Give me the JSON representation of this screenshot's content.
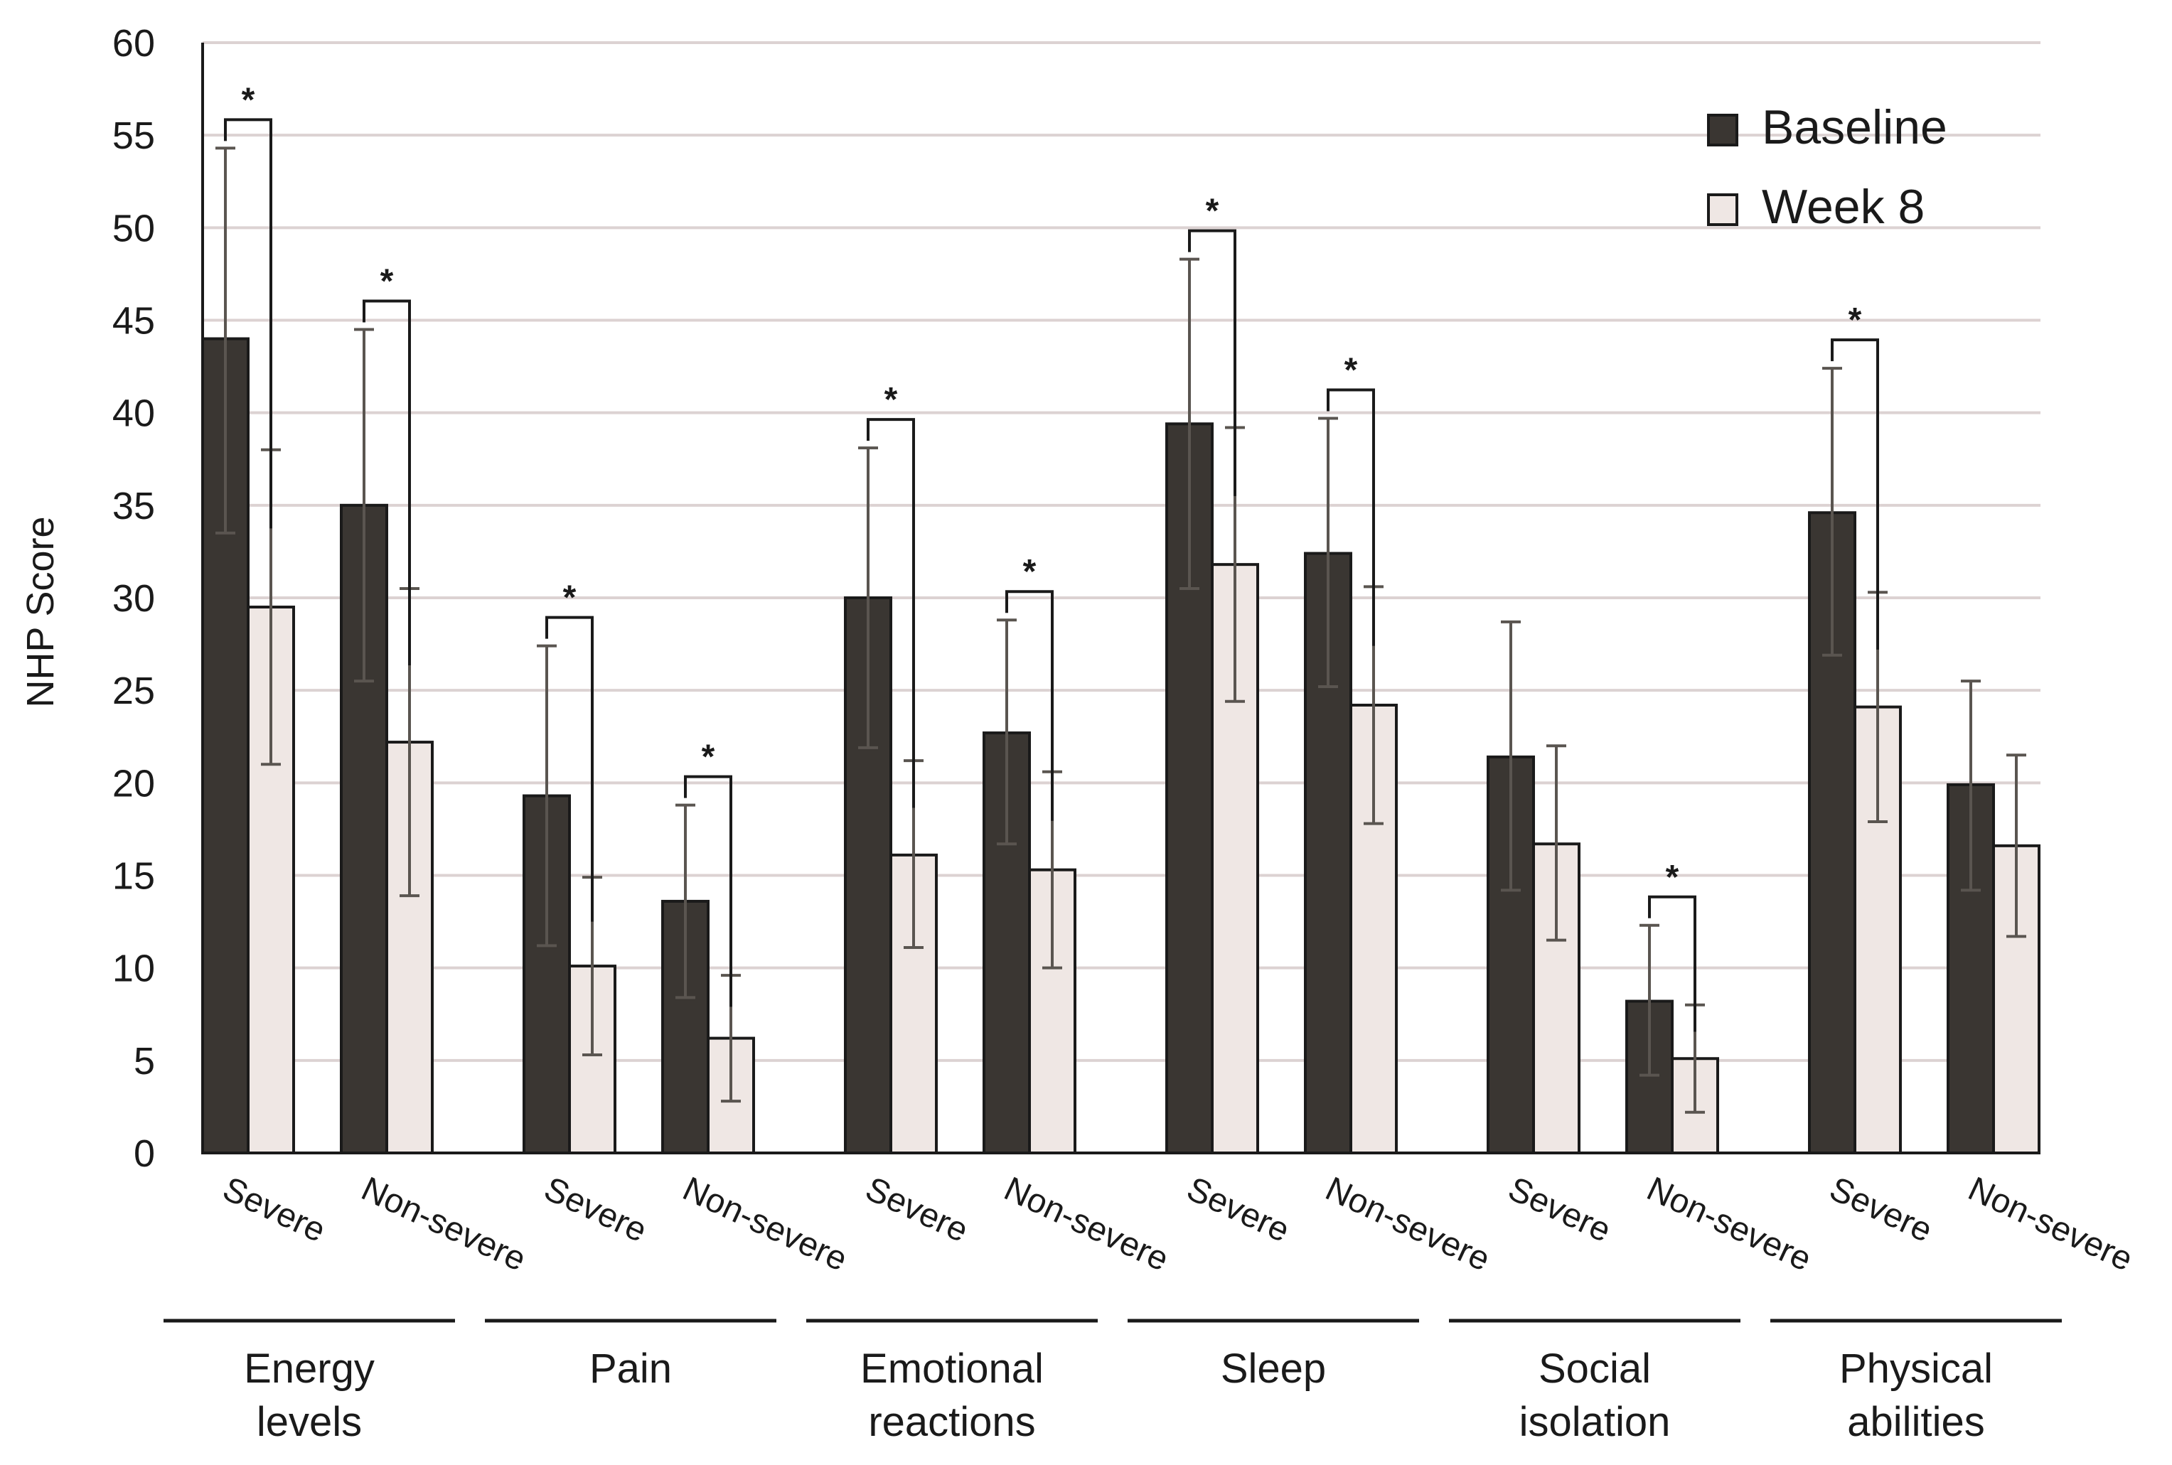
{
  "chart_data": {
    "type": "bar",
    "title": "",
    "xlabel": "",
    "ylabel": "NHP Score",
    "ylim": [
      0,
      60
    ],
    "yticks": [
      0,
      5,
      10,
      15,
      20,
      25,
      30,
      35,
      40,
      45,
      50,
      55,
      60
    ],
    "grid": true,
    "legend_position": "top-right",
    "series": [
      {
        "name": "Baseline",
        "color": "#3a3632"
      },
      {
        "name": "Week 8",
        "color": "#efe7e4"
      }
    ],
    "groups": [
      {
        "name": "Energy\nlevels",
        "subgroups": [
          {
            "label": "Severe",
            "values": [
              44.0,
              29.5
            ],
            "errors": [
              [
                33.5,
                54.3
              ],
              [
                21.0,
                38.0
              ]
            ],
            "significant": true
          },
          {
            "label": "Non-severe",
            "values": [
              35.0,
              22.2
            ],
            "errors": [
              [
                25.5,
                44.5
              ],
              [
                13.9,
                30.5
              ]
            ],
            "significant": true
          }
        ]
      },
      {
        "name": "Pain",
        "subgroups": [
          {
            "label": "Severe",
            "values": [
              19.3,
              10.1
            ],
            "errors": [
              [
                11.2,
                27.4
              ],
              [
                5.3,
                14.9
              ]
            ],
            "significant": true
          },
          {
            "label": "Non-severe",
            "values": [
              13.6,
              6.2
            ],
            "errors": [
              [
                8.4,
                18.8
              ],
              [
                2.8,
                9.6
              ]
            ],
            "significant": true
          }
        ]
      },
      {
        "name": "Emotional\nreactions",
        "subgroups": [
          {
            "label": "Severe",
            "values": [
              30.0,
              16.1
            ],
            "errors": [
              [
                21.9,
                38.1
              ],
              [
                11.1,
                21.2
              ]
            ],
            "significant": true
          },
          {
            "label": "Non-severe",
            "values": [
              22.7,
              15.3
            ],
            "errors": [
              [
                16.7,
                28.8
              ],
              [
                10.0,
                20.6
              ]
            ],
            "significant": true
          }
        ]
      },
      {
        "name": "Sleep",
        "subgroups": [
          {
            "label": "Severe",
            "values": [
              39.4,
              31.8
            ],
            "errors": [
              [
                30.5,
                48.3
              ],
              [
                24.4,
                39.2
              ]
            ],
            "significant": true
          },
          {
            "label": "Non-severe",
            "values": [
              32.4,
              24.2
            ],
            "errors": [
              [
                25.2,
                39.7
              ],
              [
                17.8,
                30.6
              ]
            ],
            "significant": true
          }
        ]
      },
      {
        "name": "Social\nisolation",
        "subgroups": [
          {
            "label": "Severe",
            "values": [
              21.4,
              16.7
            ],
            "errors": [
              [
                14.2,
                28.7
              ],
              [
                11.5,
                22.0
              ]
            ],
            "significant": false
          },
          {
            "label": "Non-severe",
            "values": [
              8.2,
              5.1
            ],
            "errors": [
              [
                4.2,
                12.3
              ],
              [
                2.2,
                8.0
              ]
            ],
            "significant": true
          }
        ]
      },
      {
        "name": "Physical\nabilities",
        "subgroups": [
          {
            "label": "Severe",
            "values": [
              34.6,
              24.1
            ],
            "errors": [
              [
                26.9,
                42.4
              ],
              [
                17.9,
                30.3
              ]
            ],
            "significant": true
          },
          {
            "label": "Non-severe",
            "values": [
              19.9,
              16.6
            ],
            "errors": [
              [
                14.2,
                25.5
              ],
              [
                11.7,
                21.5
              ]
            ],
            "significant": false
          }
        ]
      }
    ],
    "significance_marker": "*"
  }
}
